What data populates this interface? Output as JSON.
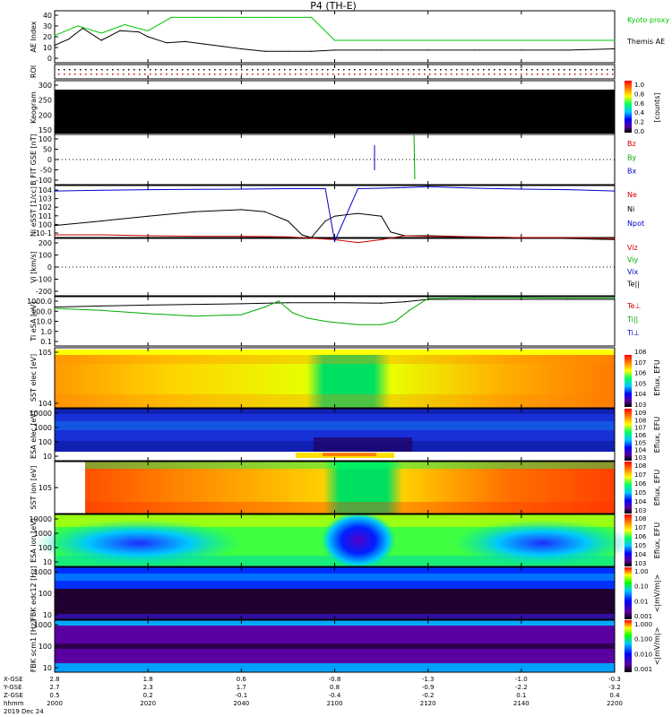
{
  "chart_data": {
    "type": "line",
    "title": "P4 (TH-E)",
    "x_axis": {
      "ticks": [
        "2000",
        "2020",
        "2040",
        "2100",
        "2120",
        "2140",
        "2200"
      ],
      "x_gse": [
        "2.8",
        "1.8",
        "0.6",
        "-0.8",
        "-1.3",
        "-1.0",
        "-0.3"
      ],
      "y_gse": [
        "2.7",
        "2.3",
        "1.7",
        "0.8",
        "-0.9",
        "-2.2",
        "-3.2"
      ],
      "z_gse": [
        "0.5",
        "0.2",
        "-0.1",
        "-0.4",
        "-0.2",
        "0.1",
        "0.4"
      ],
      "row_labels": [
        "X-GSE",
        "Y-GSE",
        "Z-GSE",
        "hhmm"
      ],
      "date": "2019 Dec 24"
    },
    "panels": [
      {
        "id": "ae",
        "ylabel": "AE Index",
        "yticks": [
          "40",
          "30",
          "20",
          "10",
          "0"
        ],
        "legend": [
          {
            "text": "Kyoto proxy AE",
            "color": "#00c800"
          },
          {
            "text": "Themis AE",
            "color": "#000000"
          }
        ]
      },
      {
        "id": "roi",
        "ylabel": "ROI",
        "yticks": []
      },
      {
        "id": "keogram",
        "ylabel": "Keogram",
        "yticks": [
          "300",
          "250",
          "200",
          "150"
        ],
        "colorbar": {
          "ticks": [
            "1.0",
            "0.8",
            "0.6",
            "0.4",
            "0.2",
            "0.0"
          ],
          "label": "[counts]"
        }
      },
      {
        "id": "bfit",
        "ylabel": "B FIT GSE [nT]",
        "yticks": [
          "100",
          "50",
          "0",
          "-50",
          "-100"
        ],
        "legend": [
          {
            "text": "Bz",
            "color": "#cc0000"
          },
          {
            "text": "By",
            "color": "#00aa00"
          },
          {
            "text": "Bx",
            "color": "#0000cc"
          }
        ]
      },
      {
        "id": "ni",
        "ylabel": "Ni eSST [1/cc]",
        "yticks": [
          "10^4",
          "10^3",
          "10^2",
          "10^1",
          "10^0",
          "10^-1"
        ],
        "legend": [
          {
            "text": "Ne",
            "color": "#cc0000"
          },
          {
            "text": "Ni",
            "color": "#000000"
          },
          {
            "text": "Npot",
            "color": "#0000cc"
          }
        ]
      },
      {
        "id": "vi",
        "ylabel": "Vi [km/s]",
        "yticks": [
          "200",
          "100",
          "0",
          "-100",
          "-200"
        ],
        "legend": [
          {
            "text": "Viz",
            "color": "#cc0000"
          },
          {
            "text": "Viy",
            "color": "#00aa00"
          },
          {
            "text": "Vix",
            "color": "#0000cc"
          },
          {
            "text": "Te||",
            "color": "#000000"
          }
        ]
      },
      {
        "id": "ti",
        "ylabel": "Ti eSA [eV]",
        "yticks": [
          "1000.0",
          "100.0",
          "10.0",
          "1.0",
          "0.1"
        ],
        "legend": [
          {
            "text": "Te⊥",
            "color": "#cc0000"
          },
          {
            "text": "Ti||",
            "color": "#00aa00"
          },
          {
            "text": "Ti⊥",
            "color": "#0000cc"
          }
        ]
      },
      {
        "id": "sst_e",
        "ylabel": "SST elec [eV]",
        "yticks": [
          "10^5",
          "10^4"
        ],
        "colorbar": {
          "ticks": [
            "10^8",
            "10^7",
            "10^6",
            "10^5",
            "10^4",
            "10^3"
          ],
          "label": "Eflux, EFU"
        }
      },
      {
        "id": "esa_e",
        "ylabel": "ESA elec [eV]",
        "yticks": [
          "10000",
          "1000",
          "100",
          "10"
        ],
        "colorbar": {
          "ticks": [
            "10^9",
            "10^8",
            "10^7",
            "10^6",
            "10^5",
            "10^4",
            "10^3"
          ],
          "label": "Eflux, EFU"
        }
      },
      {
        "id": "sst_i",
        "ylabel": "SST ion [eV]",
        "yticks": [
          "10^5"
        ],
        "colorbar": {
          "ticks": [
            "10^8",
            "10^7",
            "10^6",
            "10^5",
            "10^4",
            "10^3"
          ],
          "label": "Eflux, EFU"
        }
      },
      {
        "id": "esa_i",
        "ylabel": "ESA ion [eV]",
        "yticks": [
          "10000",
          "1000",
          "100",
          "10"
        ],
        "colorbar": {
          "ticks": [
            "10^8",
            "10^7",
            "10^6",
            "10^5",
            "10^4",
            "10^3"
          ],
          "label": "Eflux, EFU"
        }
      },
      {
        "id": "fbk1",
        "ylabel": "FBK edc12 [Hz]",
        "yticks": [
          "1000",
          "100",
          "10"
        ],
        "colorbar": {
          "ticks": [
            "1.00",
            "0.10",
            "0.01",
            "0.001"
          ],
          "label": "<|mV/m|>"
        }
      },
      {
        "id": "fbk2",
        "ylabel": "FBK scm1 [Hz]",
        "yticks": [
          "1000",
          "100",
          "10"
        ],
        "colorbar": {
          "ticks": [
            "1.000",
            "0.100",
            "0.010",
            "0.001"
          ],
          "label": "<|mV/m|>"
        }
      }
    ],
    "series": [
      {
        "name": "Kyoto proxy AE",
        "panel": "ae",
        "color": "#00c800",
        "x": [
          2000,
          2005,
          2010,
          2015,
          2020,
          2025,
          2030,
          2035,
          2040,
          2045,
          2050,
          2055,
          2100,
          2110,
          2120,
          2130,
          2140,
          2150,
          2200
        ],
        "values": [
          21,
          29,
          23,
          30,
          25,
          36,
          36,
          36,
          36,
          36,
          36,
          36,
          17,
          17,
          17,
          17,
          17,
          17,
          17
        ]
      },
      {
        "name": "Themis AE",
        "panel": "ae",
        "color": "#000000",
        "x": [
          2000,
          2003,
          2006,
          2010,
          2014,
          2018,
          2020,
          2024,
          2028,
          2032,
          2036,
          2040,
          2045,
          2050,
          2055,
          2100,
          2110,
          2120,
          2130,
          2140,
          2150,
          2200
        ],
        "values": [
          13,
          18,
          27,
          17,
          25,
          24,
          20,
          15,
          16,
          14,
          12,
          10,
          8,
          8,
          8,
          9,
          9,
          9,
          9,
          9,
          9,
          10
        ]
      },
      {
        "name": "Ni",
        "panel": "ni",
        "color": "#000000",
        "log": true,
        "x": [
          2000,
          2010,
          2020,
          2030,
          2040,
          2045,
          2050,
          2053,
          2055,
          2058,
          2100,
          2105,
          2110,
          2112,
          2115,
          2120,
          2130,
          2140,
          2150,
          2200
        ],
        "values": [
          1.0,
          3,
          10,
          30,
          50,
          30,
          3,
          0.1,
          0.05,
          3,
          10,
          20,
          10,
          0.2,
          0.08,
          0.08,
          0.06,
          0.05,
          0.04,
          0.03
        ]
      },
      {
        "name": "Ne",
        "panel": "ni",
        "color": "#cc0000",
        "log": true,
        "x": [
          2000,
          2010,
          2020,
          2030,
          2040,
          2050,
          2100,
          2105,
          2110,
          2115,
          2120,
          2130,
          2140,
          2150,
          2200
        ],
        "values": [
          0.1,
          0.1,
          0.08,
          0.07,
          0.07,
          0.06,
          0.03,
          0.015,
          0.03,
          0.08,
          0.07,
          0.06,
          0.05,
          0.05,
          0.04
        ]
      },
      {
        "name": "Npot",
        "panel": "ni",
        "color": "#0000cc",
        "log": true,
        "x": [
          2000,
          2010,
          2020,
          2030,
          2040,
          2050,
          2058,
          2100,
          2105,
          2110,
          2115,
          2120,
          2130,
          2140,
          2150,
          2200
        ],
        "values": [
          5000,
          6000,
          7000,
          7500,
          8000,
          9000,
          9000,
          0.02,
          9000,
          10000,
          12000,
          15000,
          10000,
          8000,
          7000,
          5000
        ]
      },
      {
        "name": "Te||",
        "panel": "ti",
        "color": "#000000",
        "log": true,
        "x": [
          2000,
          2010,
          2020,
          2030,
          2040,
          2050,
          2100,
          2110,
          2115,
          2120,
          2130,
          2140,
          2150,
          2200
        ],
        "values": [
          200,
          250,
          300,
          350,
          400,
          500,
          500,
          450,
          600,
          1000,
          1000,
          1000,
          1000,
          1000
        ]
      },
      {
        "name": "Ti||",
        "panel": "ti",
        "color": "#00aa00",
        "log": true,
        "x": [
          2000,
          2010,
          2020,
          2030,
          2040,
          2045,
          2048,
          2051,
          2054,
          2058,
          2100,
          2105,
          2110,
          2113,
          2116,
          2120,
          2130,
          2140,
          2150,
          2200
        ],
        "values": [
          150,
          100,
          50,
          30,
          40,
          200,
          700,
          60,
          20,
          10,
          8,
          5,
          5,
          10,
          100,
          1200,
          1400,
          1400,
          1300,
          1300
        ]
      }
    ]
  }
}
